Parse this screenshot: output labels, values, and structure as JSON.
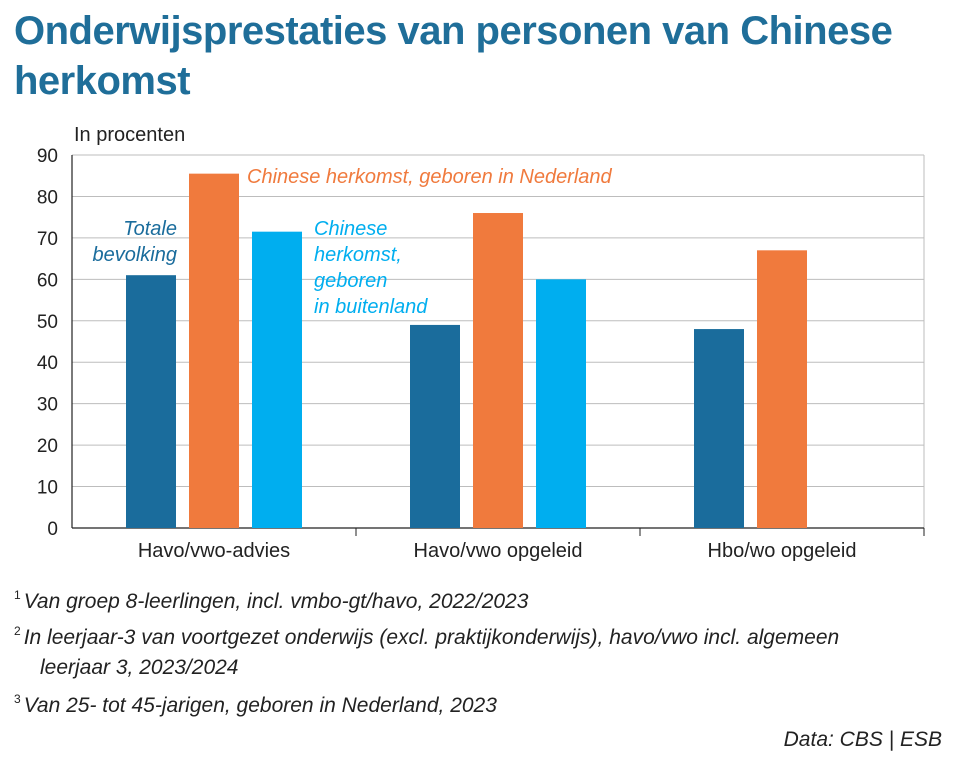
{
  "title": "Onderwijsprestaties van personen van Chinese herkomst",
  "chart_data": {
    "type": "bar",
    "ylabel": "In procenten",
    "ylim": [
      0,
      90
    ],
    "yticks": [
      0,
      10,
      20,
      30,
      40,
      50,
      60,
      70,
      80,
      90
    ],
    "grid": true,
    "categories": [
      "Havo/vwo-advies",
      "Havo/vwo opgeleid",
      "Hbo/wo opgeleid"
    ],
    "series": [
      {
        "name": "Totale bevolking",
        "label_lines": [
          "Totale",
          "bevolking"
        ],
        "color": "#1a6c9c",
        "values": [
          61,
          49,
          48
        ]
      },
      {
        "name": "Chinese herkomst, geboren in Nederland",
        "label_lines": [
          "Chinese herkomst, geboren in Nederland"
        ],
        "color": "#f07a3d",
        "values": [
          85.5,
          76,
          67
        ]
      },
      {
        "name": "Chinese herkomst, geboren in buitenland",
        "label_lines": [
          "Chinese",
          "herkomst,",
          "geboren",
          "in buitenland"
        ],
        "color": "#00aeef",
        "values": [
          71.5,
          60,
          null
        ]
      }
    ]
  },
  "footnotes": [
    {
      "mark": "1",
      "lines": [
        "Van groep 8-leerlingen, incl. vmbo-gt/havo, 2022/2023"
      ]
    },
    {
      "mark": "2",
      "lines": [
        "In leerjaar-3 van voortgezet onderwijs (excl. praktijkonderwijs), havo/vwo incl. algemeen",
        "leerjaar 3, 2023/2024"
      ]
    },
    {
      "mark": "3",
      "lines": [
        "Van 25- tot 45-jarigen, geboren in Nederland, 2023"
      ]
    }
  ],
  "source": "Data: CBS | ESB"
}
